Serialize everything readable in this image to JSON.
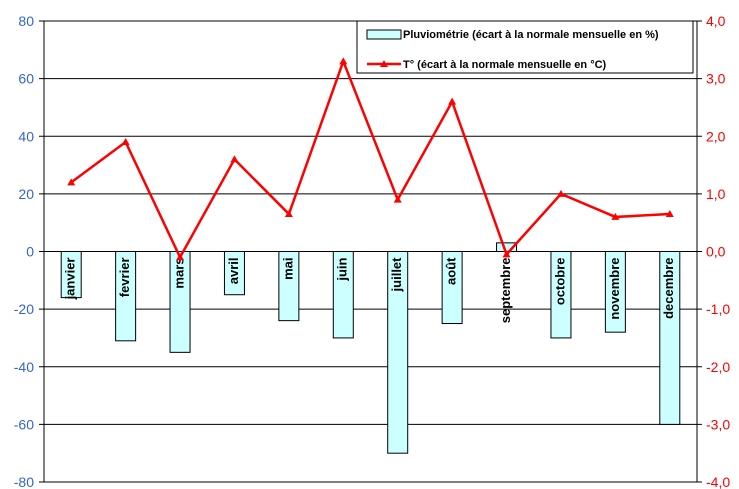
{
  "chart_data": {
    "type": "bar",
    "categories": [
      "janvier",
      "fevrier",
      "mars",
      "avril",
      "mai",
      "juin",
      "juillet",
      "août",
      "septembre",
      "octobre",
      "novembre",
      "decembre"
    ],
    "series": [
      {
        "name": "Pluviométrie (écart à la normale mensuelle en %)",
        "type": "bar",
        "axis": "left",
        "values": [
          -16,
          -31,
          -35,
          -15,
          -24,
          -30,
          -70,
          -25,
          3,
          -30,
          -28,
          -60
        ]
      },
      {
        "name": "T° (écart à la normale mensuelle en °C)",
        "type": "line",
        "axis": "right",
        "values": [
          1.2,
          1.9,
          -0.1,
          1.6,
          0.65,
          3.3,
          0.9,
          2.6,
          -0.05,
          1.0,
          0.6,
          0.65
        ]
      }
    ],
    "y_left": {
      "ylim": [
        -80,
        80
      ],
      "ticks": [
        "80",
        "60",
        "40",
        "20",
        "0",
        "-20",
        "-40",
        "-60",
        "-80"
      ]
    },
    "y_right": {
      "ylim": [
        -4,
        4
      ],
      "ticks": [
        "4,0",
        "3,0",
        "2,0",
        "1,0",
        "0,0",
        "-1,0",
        "-2,0",
        "-3,0",
        "-4,0"
      ]
    },
    "grid": true,
    "legend_position": "top-right",
    "colors": {
      "bar_fill": "#ccffff",
      "bar_stroke": "#000000",
      "line": "#ff0000",
      "left_axis": "#3366cc",
      "right_axis": "#ff0000",
      "grid": "#000000"
    }
  }
}
